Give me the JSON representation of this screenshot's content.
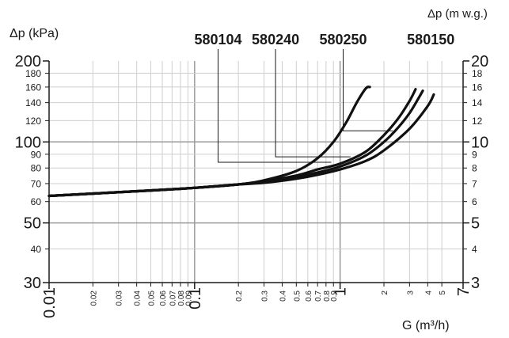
{
  "chart_data": {
    "type": "line",
    "xlabel": "G (m³/h)",
    "ylabel_left": "Δp (kPa)",
    "ylabel_right": "Δp (m w.g.)",
    "x_scale": "log",
    "y_scale": "log",
    "xlim": [
      0.01,
      7
    ],
    "ylim": [
      30,
      200
    ],
    "grid": true,
    "x_ticks_major": [
      {
        "v": 0.01,
        "label": "0.01"
      },
      {
        "v": 0.1,
        "label": "0.1"
      },
      {
        "v": 1,
        "label": "1"
      },
      {
        "v": 7,
        "label": "7"
      }
    ],
    "x_ticks_minor": [
      {
        "v": 0.02,
        "label": "0.02"
      },
      {
        "v": 0.03,
        "label": "0.03"
      },
      {
        "v": 0.04,
        "label": "0.04"
      },
      {
        "v": 0.05,
        "label": "0.05"
      },
      {
        "v": 0.06,
        "label": "0.06"
      },
      {
        "v": 0.07,
        "label": "0.07"
      },
      {
        "v": 0.08,
        "label": "0.08"
      },
      {
        "v": 0.09,
        "label": "0.09"
      },
      {
        "v": 0.2,
        "label": "0.2"
      },
      {
        "v": 0.3,
        "label": "0.3"
      },
      {
        "v": 0.4,
        "label": "0.4"
      },
      {
        "v": 0.5,
        "label": "0.5"
      },
      {
        "v": 0.6,
        "label": "0.6"
      },
      {
        "v": 0.7,
        "label": "0.7"
      },
      {
        "v": 0.8,
        "label": "0.8"
      },
      {
        "v": 0.9,
        "label": "0.9"
      },
      {
        "v": 2,
        "label": "2"
      },
      {
        "v": 3,
        "label": "3"
      },
      {
        "v": 4,
        "label": "4"
      },
      {
        "v": 5,
        "label": "5"
      }
    ],
    "y_ticks_left_major": [
      {
        "v": 30,
        "label": "30"
      },
      {
        "v": 50,
        "label": "50"
      },
      {
        "v": 100,
        "label": "100"
      },
      {
        "v": 200,
        "label": "200"
      }
    ],
    "y_ticks_left_minor": [
      {
        "v": 40,
        "label": "40"
      },
      {
        "v": 60,
        "label": "60"
      },
      {
        "v": 70,
        "label": "70"
      },
      {
        "v": 80,
        "label": "80"
      },
      {
        "v": 90,
        "label": "90"
      },
      {
        "v": 120,
        "label": "120"
      },
      {
        "v": 140,
        "label": "140"
      },
      {
        "v": 160,
        "label": "160"
      },
      {
        "v": 180,
        "label": "180"
      }
    ],
    "y_ticks_right_major": [
      {
        "v": 30,
        "label": "3"
      },
      {
        "v": 50,
        "label": "5"
      },
      {
        "v": 100,
        "label": "10"
      },
      {
        "v": 200,
        "label": "20"
      }
    ],
    "y_ticks_right_minor": [
      {
        "v": 40,
        "label": "4"
      },
      {
        "v": 60,
        "label": "6"
      },
      {
        "v": 70,
        "label": "7"
      },
      {
        "v": 80,
        "label": "8"
      },
      {
        "v": 90,
        "label": "9"
      },
      {
        "v": 120,
        "label": "12"
      },
      {
        "v": 140,
        "label": "14"
      },
      {
        "v": 160,
        "label": "16"
      },
      {
        "v": 180,
        "label": "18"
      }
    ],
    "series": [
      {
        "name": "580104",
        "x": [
          0.01,
          0.05,
          0.1,
          0.2,
          0.3,
          0.5,
          0.7,
          0.9,
          1.1,
          1.3,
          1.5,
          1.6
        ],
        "y": [
          63,
          66,
          67.5,
          69.5,
          72,
          78,
          87,
          100,
          118,
          140,
          158,
          160
        ]
      },
      {
        "name": "580240",
        "x": [
          0.01,
          0.05,
          0.1,
          0.2,
          0.3,
          0.5,
          0.7,
          1.0,
          1.5,
          2.0,
          2.5,
          3.0,
          3.3
        ],
        "y": [
          63,
          66,
          67.5,
          69.5,
          71.5,
          75,
          79,
          83,
          92,
          106,
          122,
          142,
          157
        ]
      },
      {
        "name": "580250",
        "x": [
          0.01,
          0.05,
          0.1,
          0.2,
          0.3,
          0.5,
          0.7,
          1.0,
          1.5,
          2.0,
          2.5,
          3.0,
          3.5,
          3.7
        ],
        "y": [
          63,
          66,
          67.5,
          69.5,
          71,
          74,
          77,
          81,
          89,
          100,
          113,
          128,
          147,
          155
        ]
      },
      {
        "name": "580150",
        "x": [
          0.01,
          0.05,
          0.1,
          0.2,
          0.3,
          0.5,
          0.7,
          1.0,
          1.5,
          2.0,
          3.0,
          4.0,
          4.4
        ],
        "y": [
          63,
          66,
          67.5,
          69.5,
          70.5,
          73,
          75.5,
          79,
          85,
          93,
          112,
          136,
          150
        ]
      }
    ],
    "leader_lines": [
      {
        "series": "580104",
        "label_x": 0.145,
        "elbow_y": 84,
        "curve_x": 0.87
      },
      {
        "series": "580240",
        "label_x": 0.36,
        "elbow_y": 88,
        "curve_x": 1.18
      },
      {
        "series": "580250",
        "label_x": 1.05,
        "elbow_y": 110,
        "curve_x": 2.3
      },
      {
        "series": "580150",
        "label_x": 4.2,
        "elbow_y": null,
        "curve_x": null
      }
    ]
  }
}
